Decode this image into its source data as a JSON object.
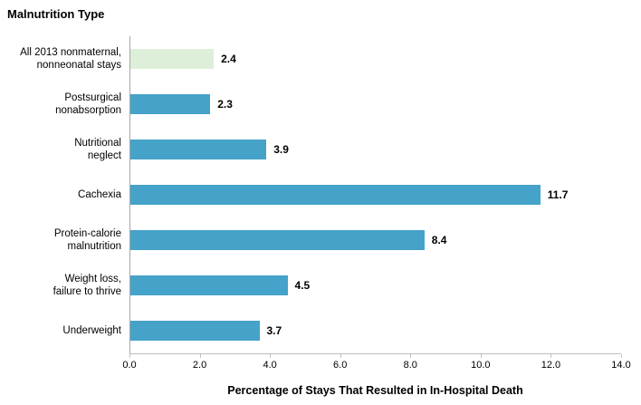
{
  "chart_data": {
    "type": "bar",
    "orientation": "horizontal",
    "title": "Malnutrition Type",
    "categories": [
      "All 2013 nonmaternal, nonneonatal stays",
      "Postsurgical nonabsorption",
      "Nutritional neglect",
      "Cachexia",
      "Protein-calorie malnutrition",
      "Weight loss, failure to thrive",
      "Underweight"
    ],
    "display_labels": [
      "All 2013 nonmaternal,\nnonneonatal stays",
      "Postsurgical\nnonabsorption",
      "Nutritional\nneglect",
      "Cachexia",
      "Protein-calorie\nmalnutrition",
      "Weight loss,\nfailure to thrive",
      "Underweight"
    ],
    "values": [
      2.4,
      2.3,
      3.9,
      11.7,
      8.4,
      4.5,
      3.7
    ],
    "value_labels": [
      "2.4",
      "2.3",
      "3.9",
      "11.7",
      "8.4",
      "4.5",
      "3.7"
    ],
    "highlight_index": 0,
    "xlabel": "Percentage of Stays That Resulted in In-Hospital Death",
    "xlim": [
      0,
      14
    ],
    "xtick_labels": [
      "0.0",
      "2.0",
      "4.0",
      "6.0",
      "8.0",
      "10.0",
      "12.0",
      "14.0"
    ],
    "grid": false,
    "legend": "none"
  },
  "colors": {
    "highlight_bar": "#ddefd9",
    "bar": "#45a2c9",
    "vertical_axis": "#a6a6a6",
    "horizontal_axis": "#bfbfbf",
    "text": "#000000"
  }
}
